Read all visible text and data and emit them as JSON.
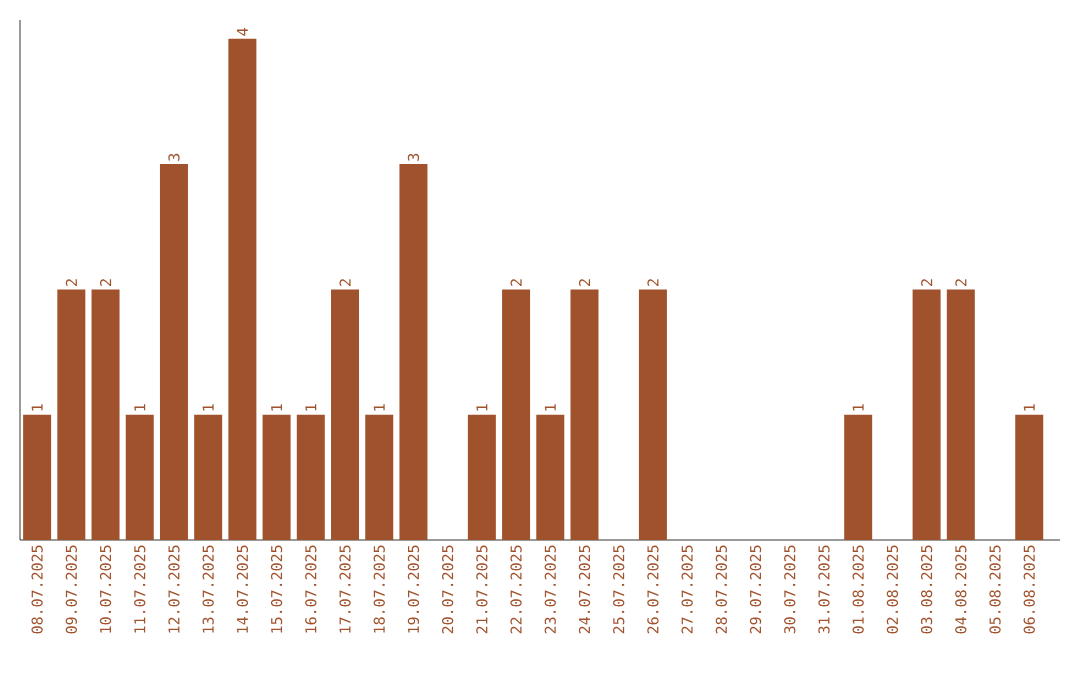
{
  "chart_data": {
    "type": "bar",
    "categories": [
      "08.07.2025",
      "09.07.2025",
      "10.07.2025",
      "11.07.2025",
      "12.07.2025",
      "13.07.2025",
      "14.07.2025",
      "15.07.2025",
      "16.07.2025",
      "17.07.2025",
      "18.07.2025",
      "19.07.2025",
      "20.07.2025",
      "21.07.2025",
      "22.07.2025",
      "23.07.2025",
      "24.07.2025",
      "25.07.2025",
      "26.07.2025",
      "27.07.2025",
      "28.07.2025",
      "29.07.2025",
      "30.07.2025",
      "31.07.2025",
      "01.08.2025",
      "02.08.2025",
      "03.08.2025",
      "04.08.2025",
      "05.08.2025",
      "06.08.2025"
    ],
    "values": [
      1,
      2,
      2,
      1,
      3,
      1,
      4,
      1,
      1,
      2,
      1,
      3,
      0,
      1,
      2,
      1,
      2,
      0,
      2,
      0,
      0,
      0,
      0,
      0,
      1,
      0,
      2,
      2,
      0,
      1
    ],
    "value_labels": [
      "1",
      "2",
      "2",
      "1",
      "3",
      "1",
      "4",
      "1",
      "1",
      "2",
      "1",
      "3",
      null,
      "1",
      "2",
      "1",
      "2",
      null,
      "2",
      null,
      null,
      null,
      null,
      null,
      "1",
      null,
      "2",
      "2",
      null,
      "1"
    ],
    "color": "#a0522d",
    "ylim": [
      0,
      4.15
    ],
    "tick_labels": "x"
  }
}
